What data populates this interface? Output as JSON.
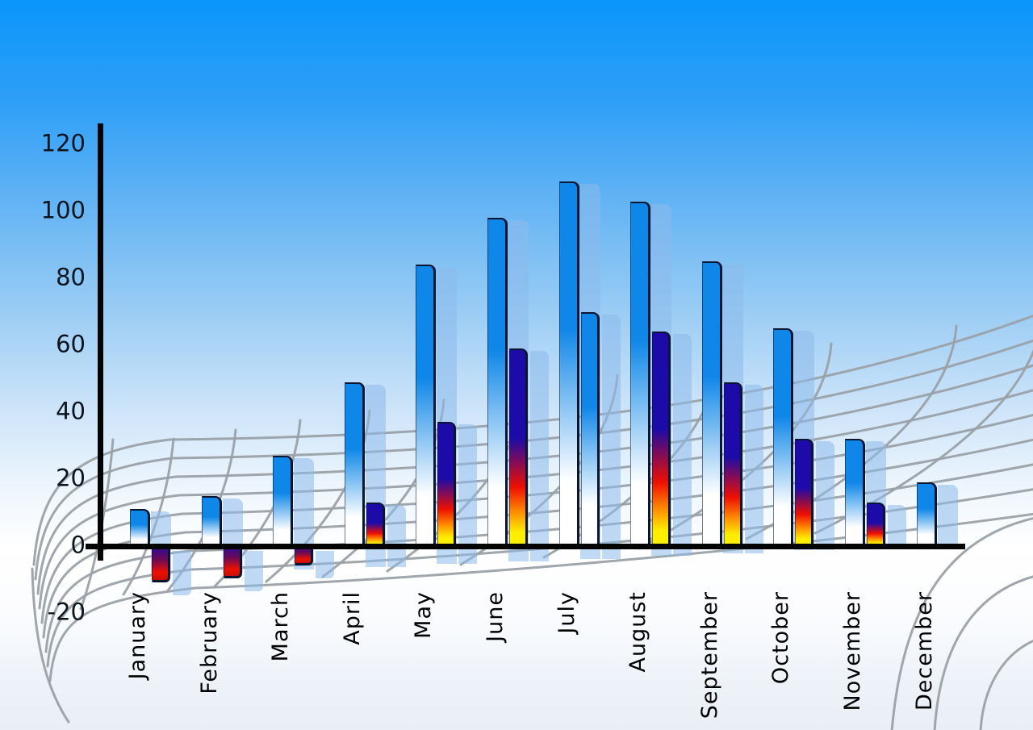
{
  "chart_data": {
    "type": "bar",
    "categories": [
      "January",
      "February",
      "March",
      "April",
      "May",
      "June",
      "July",
      "August",
      "September",
      "October",
      "November",
      "December"
    ],
    "series": [
      {
        "name": "primary-blue",
        "values": [
          11,
          15,
          27,
          49,
          84,
          98,
          109,
          103,
          85,
          65,
          32,
          19
        ]
      },
      {
        "name": "secondary-gradient",
        "values": [
          -10,
          -9,
          -5,
          13,
          37,
          59,
          70,
          64,
          49,
          32,
          13,
          null
        ]
      }
    ],
    "secondary_style": [
      "gradient",
      "gradient",
      "gradient",
      "gradient",
      "gradient",
      "gradient",
      "blue",
      "gradient",
      "gradient",
      "gradient",
      "gradient",
      "none"
    ],
    "y_ticks": [
      120,
      100,
      80,
      60,
      40,
      20,
      0,
      -20
    ],
    "ylim": [
      -20,
      120
    ],
    "xlabel": "",
    "ylabel": "",
    "legend_position": "none",
    "grid": "perspective-floor-mesh",
    "shadow_copies": true
  },
  "colors": {
    "sky_top": "#0a96fb",
    "sky_bottom": "#e9eff6",
    "bar_blue": "#0f87e8",
    "bar_fade": "#ffffff",
    "shadow_blue": "#8cb9eb",
    "gradient_navy": "#1c0ba8",
    "gradient_red": "#ee0f00",
    "gradient_orange": "#ff9000",
    "gradient_yellow": "#ffee00",
    "negative_top": "#2c0b9c",
    "axis": "#040404",
    "grid_gray": "#9aa1a8",
    "tick_text": "#0c1420",
    "month_text": "#000000"
  }
}
